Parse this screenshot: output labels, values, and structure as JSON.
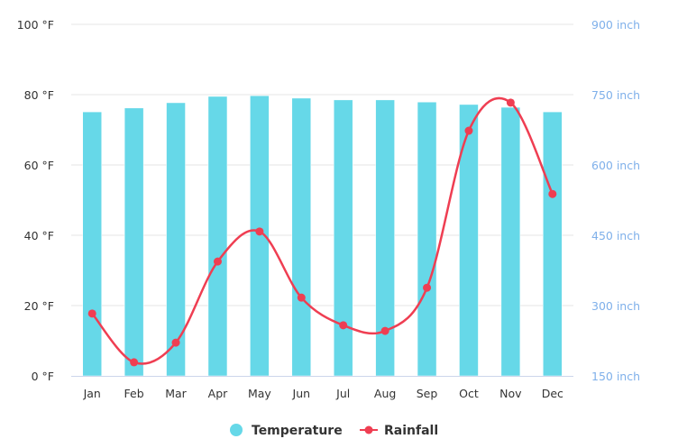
{
  "chart_data": {
    "type": "bar+line",
    "categories": [
      "Jan",
      "Feb",
      "Mar",
      "Apr",
      "May",
      "Jun",
      "Jul",
      "Aug",
      "Sep",
      "Oct",
      "Nov",
      "Dec"
    ],
    "series": [
      {
        "name": "Temperature",
        "type": "bar",
        "axis": "left",
        "color": "#66d8e8",
        "values": [
          75.1,
          76.2,
          77.7,
          79.5,
          79.7,
          79.0,
          78.5,
          78.5,
          77.9,
          77.2,
          76.4,
          75.1
        ]
      },
      {
        "name": "Rainfall",
        "type": "spline",
        "axis": "right",
        "color": "#ef3e52",
        "values": [
          283,
          179,
          221,
          394,
          458,
          317,
          258,
          246,
          338,
          673,
          733,
          538
        ]
      }
    ],
    "left_axis": {
      "min": 0,
      "max": 100,
      "ticks": [
        "0 °F",
        "20 °F",
        "40 °F",
        "60 °F",
        "80 °F",
        "100 °F"
      ],
      "tick_values": [
        0,
        20,
        40,
        60,
        80,
        100
      ]
    },
    "right_axis": {
      "min": 150,
      "max": 900,
      "ticks": [
        "150 inch",
        "300 inch",
        "450 inch",
        "600 inch",
        "750 inch",
        "900 inch"
      ],
      "tick_values": [
        150,
        300,
        450,
        600,
        750,
        900
      ],
      "color": "#7fb0ea"
    },
    "grid": true,
    "legend": "bottom"
  }
}
